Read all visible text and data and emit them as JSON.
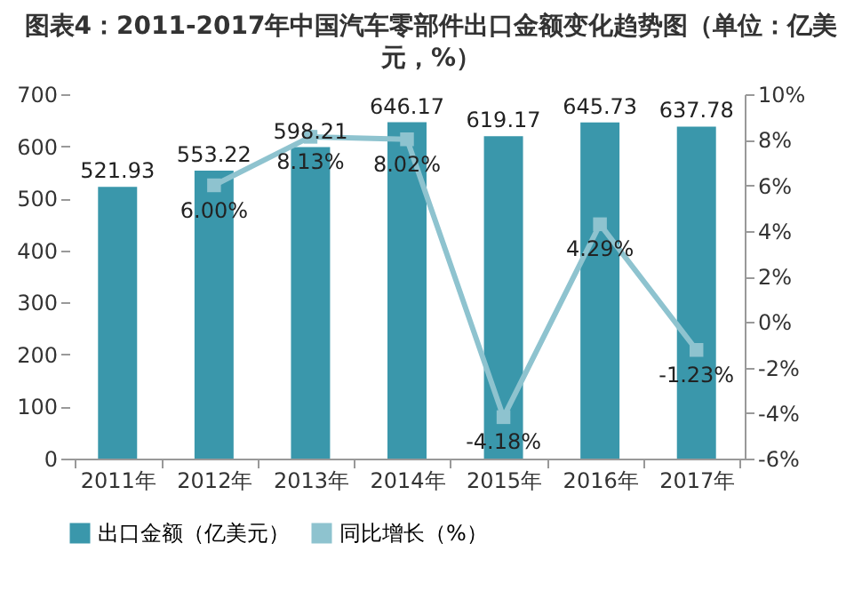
{
  "chart_data": {
    "type": "bar",
    "title": "图表4：2011-2017年中国汽车零部件出口金额变化趋势图（单位：亿美元，%）",
    "categories": [
      "2011年",
      "2012年",
      "2013年",
      "2014年",
      "2015年",
      "2016年",
      "2017年"
    ],
    "series": [
      {
        "name": "出口金额（亿美元）",
        "color": "#3a97ab",
        "values": [
          521.93,
          553.22,
          598.21,
          646.17,
          619.17,
          645.73,
          637.78
        ],
        "value_labels": [
          "521.93",
          "553.22",
          "598.21",
          "646.17",
          "619.17",
          "645.73",
          "637.78"
        ]
      },
      {
        "name": "同比增长（%）",
        "type": "line",
        "axis": "y2",
        "color": "#8ec3cf",
        "values": [
          null,
          6.0,
          8.13,
          8.02,
          -4.18,
          4.29,
          -1.23
        ],
        "value_labels": [
          null,
          "6.00%",
          "8.13%",
          "8.02%",
          "-4.18%",
          "4.29%",
          "-1.23%"
        ]
      }
    ],
    "ylim": [
      0,
      700
    ],
    "yticks": [
      0,
      100,
      200,
      300,
      400,
      500,
      600,
      700
    ],
    "y2lim": [
      -6,
      10
    ],
    "y2ticks": [
      {
        "value": -6,
        "label": "-6%"
      },
      {
        "value": -4,
        "label": "-4%"
      },
      {
        "value": -2,
        "label": "-2%"
      },
      {
        "value": 0,
        "label": "0%"
      },
      {
        "value": 2,
        "label": "2%"
      },
      {
        "value": 4,
        "label": "4%"
      },
      {
        "value": 6,
        "label": "6%"
      },
      {
        "value": 8,
        "label": "8%"
      },
      {
        "value": 10,
        "label": "10%"
      }
    ],
    "marker": "square",
    "legend": "bottom"
  }
}
